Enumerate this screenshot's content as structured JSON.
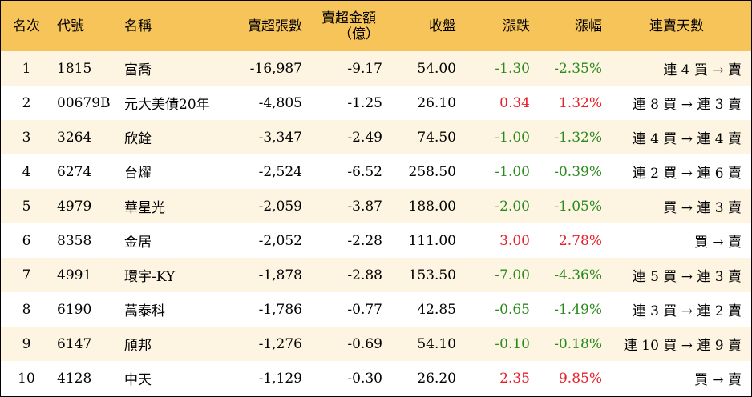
{
  "header": {
    "rank": "名次",
    "code": "代號",
    "name": "名稱",
    "sell_shares": "賣超張數",
    "sell_amount_line1": "賣超金額",
    "sell_amount_line2": "（億）",
    "close": "收盤",
    "change": "漲跌",
    "change_pct": "漲幅",
    "streak": "連賣天數"
  },
  "rows": [
    {
      "rank": "1",
      "code": "1815",
      "name": "富喬",
      "sell_shares": "-16,987",
      "sell_amount": "-9.17",
      "close": "54.00",
      "change": "-1.30",
      "change_pct": "-2.35%",
      "streak": "連 4 買 → 賣",
      "direction": "down"
    },
    {
      "rank": "2",
      "code": "00679B",
      "name": "元大美債20年",
      "sell_shares": "-4,805",
      "sell_amount": "-1.25",
      "close": "26.10",
      "change": "0.34",
      "change_pct": "1.32%",
      "streak": "連 8 買 → 連 3 賣",
      "direction": "up"
    },
    {
      "rank": "3",
      "code": "3264",
      "name": "欣銓",
      "sell_shares": "-3,347",
      "sell_amount": "-2.49",
      "close": "74.50",
      "change": "-1.00",
      "change_pct": "-1.32%",
      "streak": "連 4 買 → 連 4 賣",
      "direction": "down"
    },
    {
      "rank": "4",
      "code": "6274",
      "name": "台燿",
      "sell_shares": "-2,524",
      "sell_amount": "-6.52",
      "close": "258.50",
      "change": "-1.00",
      "change_pct": "-0.39%",
      "streak": "連 2 買 → 連 6 賣",
      "direction": "down"
    },
    {
      "rank": "5",
      "code": "4979",
      "name": "華星光",
      "sell_shares": "-2,059",
      "sell_amount": "-3.87",
      "close": "188.00",
      "change": "-2.00",
      "change_pct": "-1.05%",
      "streak": "買 → 連 3 賣",
      "direction": "down"
    },
    {
      "rank": "6",
      "code": "8358",
      "name": "金居",
      "sell_shares": "-2,052",
      "sell_amount": "-2.28",
      "close": "111.00",
      "change": "3.00",
      "change_pct": "2.78%",
      "streak": "買 → 賣",
      "direction": "up"
    },
    {
      "rank": "7",
      "code": "4991",
      "name": "環宇-KY",
      "sell_shares": "-1,878",
      "sell_amount": "-2.88",
      "close": "153.50",
      "change": "-7.00",
      "change_pct": "-4.36%",
      "streak": "連 5 買 → 連 3 賣",
      "direction": "down"
    },
    {
      "rank": "8",
      "code": "6190",
      "name": "萬泰科",
      "sell_shares": "-1,786",
      "sell_amount": "-0.77",
      "close": "42.85",
      "change": "-0.65",
      "change_pct": "-1.49%",
      "streak": "連 3 買 → 連 2 賣",
      "direction": "down"
    },
    {
      "rank": "9",
      "code": "6147",
      "name": "頎邦",
      "sell_shares": "-1,276",
      "sell_amount": "-0.69",
      "close": "54.10",
      "change": "-0.10",
      "change_pct": "-0.18%",
      "streak": "連 10 買 → 連 9 賣",
      "direction": "down"
    },
    {
      "rank": "10",
      "code": "4128",
      "name": "中天",
      "sell_shares": "-1,129",
      "sell_amount": "-0.30",
      "close": "26.20",
      "change": "2.35",
      "change_pct": "9.85%",
      "streak": "買 → 賣",
      "direction": "up"
    }
  ],
  "colors": {
    "header_bg": "#f7c45a",
    "odd_row_bg": "#fdf5e2",
    "up": "#e8202a",
    "down": "#2b8a1e"
  }
}
